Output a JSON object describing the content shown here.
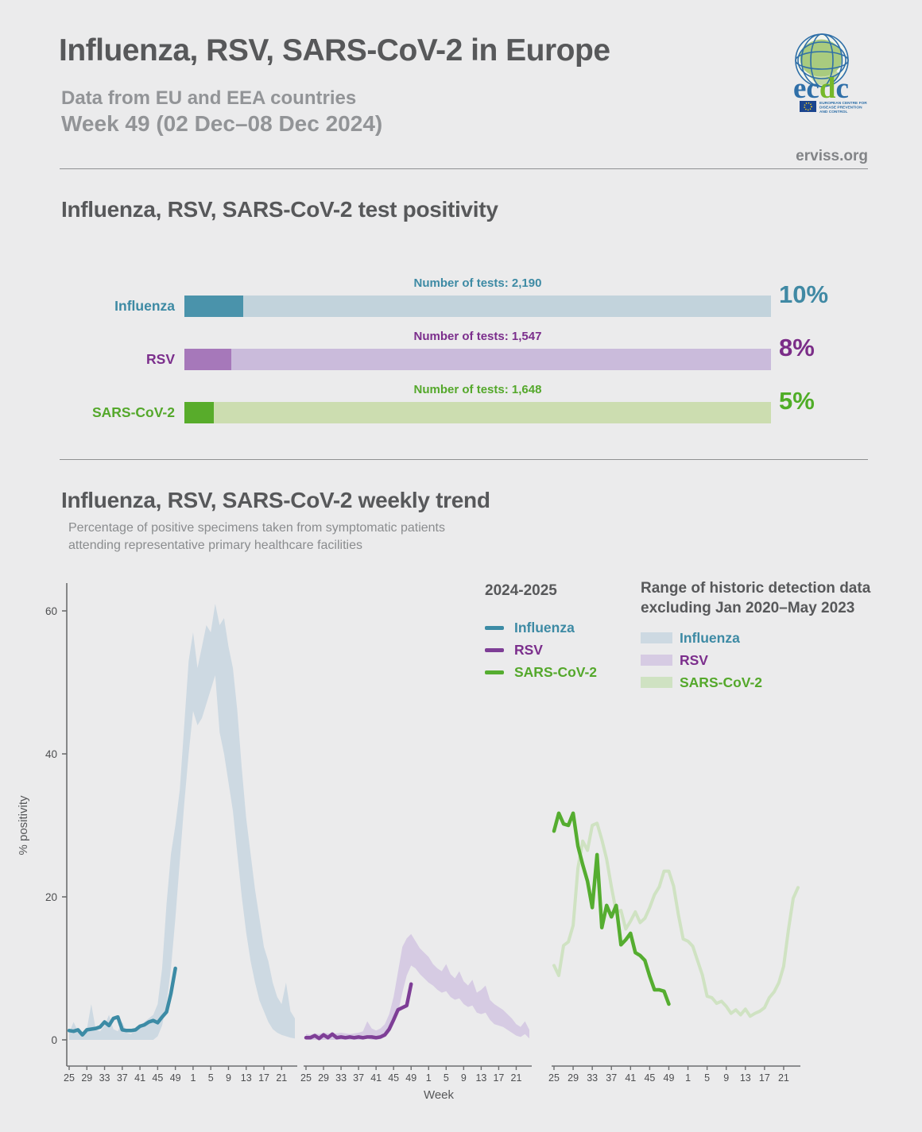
{
  "header": {
    "title": "Influenza, RSV, SARS-CoV-2 in Europe",
    "subtitle": "Data from EU and EEA countries",
    "week_range": "Week 49 (02 Dec–08 Dec 2024)",
    "site": "erviss.org",
    "logo": {
      "brand_ec": "ec",
      "brand_d": "d",
      "brand_c": "c",
      "caption_line1": "EUROPEAN CENTRE FOR",
      "caption_line2": "DISEASE PREVENTION",
      "caption_line3": "AND CONTROL"
    }
  },
  "positivity": {
    "title": "Influenza, RSV, SARS-CoV-2 test positivity",
    "rows": [
      {
        "label": "Influenza",
        "tests_label": "Number of tests: 2,190",
        "pct": 10,
        "pct_label": "10%",
        "fill_color": "#4a93ab",
        "track_color": "#c2d3dc",
        "text_color": "#3d8aa4",
        "pct_color": "#4089a4"
      },
      {
        "label": "RSV",
        "tests_label": "Number of tests: 1,547",
        "pct": 8,
        "pct_label": "8%",
        "fill_color": "#a678ba",
        "track_color": "#cabbdb",
        "text_color": "#7b2e8c",
        "pct_color": "#7b2d88"
      },
      {
        "label": "SARS-CoV-2",
        "tests_label": "Number of tests: 1,648",
        "pct": 5,
        "pct_label": "5%",
        "fill_color": "#58ac2b",
        "track_color": "#ccddb0",
        "text_color": "#54a82b",
        "pct_color": "#4fad27"
      }
    ]
  },
  "trend": {
    "title": "Influenza, RSV, SARS-CoV-2 weekly trend",
    "subtitle_line1": "Percentage of positive specimens taken from symptomatic patients",
    "subtitle_line2": "attending representative primary healthcare facilities",
    "legend": {
      "current_header": "2024-2025",
      "historic_header_line1": "Range of historic detection data",
      "historic_header_line2": "excluding Jan 2020–May 2023",
      "items": [
        {
          "label": "Influenza",
          "line_color": "#3c8ba5",
          "band_color": "#cdd9e2",
          "text_color": "#3d8aa4"
        },
        {
          "label": "RSV",
          "line_color": "#7e3e96",
          "band_color": "#d6cbe3",
          "text_color": "#7b2e8c"
        },
        {
          "label": "SARS-CoV-2",
          "line_color": "#55ad30",
          "band_color": "#cfe2c2",
          "text_color": "#54a82b"
        }
      ]
    }
  },
  "chart_data": {
    "type": "line",
    "title": "Influenza, RSV, SARS-CoV-2 weekly trend",
    "ylabel": "% positivity",
    "xlabel": "Week",
    "ylim": [
      0,
      65
    ],
    "yticks": [
      0,
      20,
      40,
      60
    ],
    "grid": false,
    "weeks_per_panel": 52,
    "week_start": 25,
    "current_season_last_week": 49,
    "week_labels": [
      25,
      29,
      33,
      37,
      41,
      45,
      49,
      1,
      5,
      9,
      13,
      17,
      21
    ],
    "panels": [
      {
        "name": "Influenza",
        "color": "#3c8ba5",
        "band_color": "#cdd9e2",
        "hist_max": [
          1.0,
          2.5,
          1.2,
          1.0,
          1.5,
          5.0,
          1.5,
          1.2,
          2.0,
          3.5,
          1.5,
          1.2,
          2.5,
          1.0,
          0.8,
          1.5,
          2.0,
          2.5,
          3.0,
          3.5,
          5.0,
          10,
          19,
          26,
          30,
          35,
          44,
          53,
          57,
          52,
          55,
          58,
          57,
          61,
          58,
          59,
          55,
          52,
          46,
          38,
          31,
          26,
          21,
          17,
          13,
          11,
          8,
          6,
          5,
          8,
          4,
          3
        ],
        "hist_min": [
          0,
          0,
          0,
          0,
          0,
          0,
          0,
          0,
          0,
          0,
          0,
          0,
          0,
          0,
          0,
          0,
          0,
          0,
          0,
          0,
          0.5,
          2,
          5,
          10,
          17,
          25,
          33,
          40,
          46,
          44,
          45,
          47,
          49,
          51,
          43,
          40,
          36,
          32,
          26,
          20,
          15,
          11,
          8,
          5.5,
          4,
          2.5,
          1.5,
          1,
          0.7,
          0.5,
          0.3,
          0.2
        ],
        "current": [
          1.3,
          1.2,
          1.4,
          0.7,
          1.4,
          1.5,
          1.6,
          1.8,
          2.5,
          2.0,
          3.0,
          3.2,
          1.4,
          1.3,
          1.3,
          1.4,
          1.9,
          2.1,
          2.5,
          2.7,
          2.4,
          3.2,
          3.9,
          6.5,
          10.0
        ]
      },
      {
        "name": "RSV",
        "color": "#7e3e96",
        "band_color": "#d6cbe3",
        "hist_max": [
          0.8,
          0.7,
          0.9,
          0.8,
          1.0,
          0.9,
          0.8,
          0.9,
          1.0,
          0.9,
          0.8,
          0.9,
          1.0,
          1.2,
          2.6,
          1.6,
          1.3,
          1.6,
          2.2,
          3.6,
          6.0,
          9.5,
          13.0,
          14.2,
          14.8,
          13.8,
          12.8,
          12.2,
          11.6,
          10.6,
          10.0,
          9.6,
          10.6,
          9.2,
          8.6,
          9.6,
          8.2,
          7.6,
          8.4,
          6.6,
          7.0,
          7.6,
          5.6,
          5.0,
          4.6,
          4.2,
          3.6,
          3.0,
          2.2,
          1.8,
          2.6,
          1.4
        ],
        "hist_min": [
          0,
          0,
          0,
          0,
          0,
          0,
          0,
          0,
          0,
          0,
          0,
          0,
          0,
          0,
          0.2,
          0,
          0,
          0.1,
          0.4,
          1.0,
          2.2,
          3.8,
          6.6,
          9.0,
          10.4,
          10.0,
          9.2,
          8.6,
          8.0,
          7.6,
          7.0,
          6.6,
          6.8,
          6.0,
          5.6,
          5.8,
          5.0,
          4.6,
          4.8,
          3.8,
          3.6,
          3.8,
          2.8,
          2.2,
          2.0,
          1.8,
          1.4,
          1.0,
          0.6,
          0.4,
          0.8,
          0.2
        ],
        "current": [
          0.3,
          0.3,
          0.6,
          0.2,
          0.7,
          0.3,
          0.8,
          0.3,
          0.4,
          0.3,
          0.4,
          0.3,
          0.4,
          0.3,
          0.4,
          0.4,
          0.3,
          0.4,
          0.7,
          1.5,
          2.8,
          4.2,
          4.5,
          4.8,
          7.8
        ]
      },
      {
        "name": "SARS-CoV-2",
        "color": "#55ad30",
        "band_color": "#cfe2c2",
        "hist_line": [
          10.4,
          9.0,
          13.2,
          13.7,
          16.0,
          24.0,
          27.8,
          26.5,
          30.0,
          30.3,
          28.0,
          25.3,
          21.4,
          17.9,
          18.1,
          15.5,
          16.6,
          17.9,
          16.4,
          17.0,
          18.5,
          20.3,
          21.4,
          23.6,
          23.6,
          21.5,
          17.5,
          14.1,
          13.8,
          13.1,
          11.1,
          9.1,
          6.1,
          5.9,
          5.1,
          5.4,
          4.7,
          3.7,
          4.2,
          3.5,
          4.3,
          3.3,
          3.7,
          4.0,
          4.5,
          5.9,
          6.7,
          8.0,
          10.3,
          15.4,
          19.8,
          21.3
        ],
        "current": [
          29.2,
          31.7,
          30.2,
          30.0,
          31.7,
          27.1,
          24.5,
          22.2,
          18.5,
          25.9,
          15.7,
          18.8,
          17.2,
          18.8,
          13.3,
          14.0,
          14.9,
          12.2,
          11.8,
          11.1,
          8.9,
          7.0,
          7.0,
          6.8,
          5.0
        ]
      }
    ]
  }
}
